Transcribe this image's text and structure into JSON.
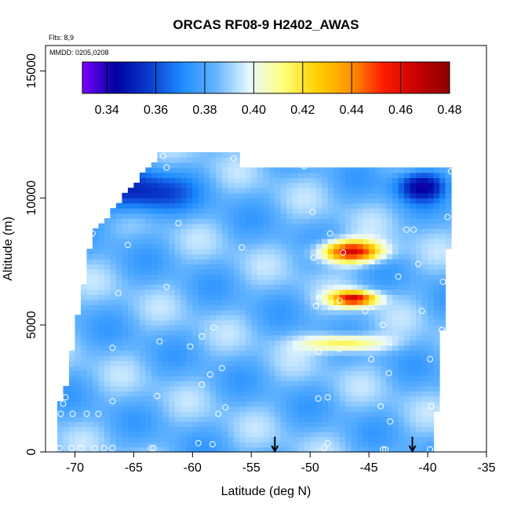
{
  "chart_data": {
    "type": "heatmap",
    "title": "ORCAS RF08-9 H2402_AWAS",
    "xlabel": "Latitude (deg N)",
    "ylabel": "Altitude (m)",
    "xlim": [
      -72.5,
      -35
    ],
    "ylim": [
      0,
      16000
    ],
    "x_ticks": [
      -70,
      -65,
      -60,
      -55,
      -50,
      -45,
      -40,
      -35
    ],
    "x_tick_labels": [
      "-70",
      "-65",
      "-60",
      "-55",
      "-50",
      "-45",
      "-40",
      "-35"
    ],
    "y_ticks": [
      0,
      5000,
      10000,
      15000
    ],
    "y_tick_labels": [
      "0",
      "5000",
      "10000",
      "15000"
    ],
    "flights_note": "Flts: 8,9",
    "date_note": "MMDD: 0205,0208",
    "colorbar": {
      "min": 0.33,
      "max": 0.48,
      "ticks": [
        0.34,
        0.36,
        0.38,
        0.4,
        0.42,
        0.44,
        0.46,
        0.48
      ],
      "tick_labels": [
        "0.34",
        "0.36",
        "0.38",
        "0.40",
        "0.42",
        "0.44",
        "0.46",
        "0.48"
      ],
      "colors": [
        "#7a00ff",
        "#0000a0",
        "#0a3ccd",
        "#1e8cff",
        "#64b4ff",
        "#e8f8ff",
        "#ffff80",
        "#ffd200",
        "#ff9600",
        "#ff1e00",
        "#c80000",
        "#8c0000"
      ]
    },
    "background_value": 0.385,
    "features": [
      {
        "lat_min": -49.5,
        "lat_max": -43.5,
        "alt_min": 7400,
        "alt_max": 8400,
        "peak": 0.465
      },
      {
        "lat_min": -48.5,
        "lat_max": -44.0,
        "alt_min": 5700,
        "alt_max": 6400,
        "peak": 0.46
      },
      {
        "lat_min": -51.0,
        "lat_max": -43.0,
        "alt_min": 3900,
        "alt_max": 4700,
        "peak": 0.425
      },
      {
        "lat_min": -70.0,
        "lat_max": -60.0,
        "alt_min": 9200,
        "alt_max": 11200,
        "peak": 0.35
      },
      {
        "lat_min": -43.0,
        "lat_max": -38.0,
        "alt_min": 9800,
        "alt_max": 11200,
        "peak": 0.345
      }
    ],
    "sample_points": [
      {
        "x": -62.5,
        "y": 11650
      },
      {
        "x": -56.5,
        "y": 11550
      },
      {
        "x": -62.2,
        "y": 11200
      },
      {
        "x": -50.5,
        "y": 11250
      },
      {
        "x": -38.0,
        "y": 11050
      },
      {
        "x": -67.8,
        "y": 10800
      },
      {
        "x": -68.2,
        "y": 9600
      },
      {
        "x": -49.8,
        "y": 9450
      },
      {
        "x": -61.2,
        "y": 9000
      },
      {
        "x": -38.3,
        "y": 9250
      },
      {
        "x": -48.3,
        "y": 8600
      },
      {
        "x": -41.8,
        "y": 8750
      },
      {
        "x": -41.2,
        "y": 8750
      },
      {
        "x": -68.5,
        "y": 8600
      },
      {
        "x": -65.5,
        "y": 8150
      },
      {
        "x": -55.8,
        "y": 8050
      },
      {
        "x": -47.2,
        "y": 7850
      },
      {
        "x": -49.7,
        "y": 7650
      },
      {
        "x": -45.8,
        "y": 7450
      },
      {
        "x": -40.8,
        "y": 7400
      },
      {
        "x": -70.0,
        "y": 7100
      },
      {
        "x": -42.5,
        "y": 6900
      },
      {
        "x": -38.7,
        "y": 6700
      },
      {
        "x": -62.2,
        "y": 6500
      },
      {
        "x": -66.3,
        "y": 6250
      },
      {
        "x": -47.5,
        "y": 5950
      },
      {
        "x": -49.5,
        "y": 5750
      },
      {
        "x": -45.3,
        "y": 5550
      },
      {
        "x": -40.5,
        "y": 5550
      },
      {
        "x": -43.8,
        "y": 5000
      },
      {
        "x": -58.2,
        "y": 4900
      },
      {
        "x": -38.8,
        "y": 4800
      },
      {
        "x": -59.2,
        "y": 4550
      },
      {
        "x": -62.8,
        "y": 4350
      },
      {
        "x": -60.2,
        "y": 4150
      },
      {
        "x": -66.8,
        "y": 4100
      },
      {
        "x": -70.5,
        "y": 4100
      },
      {
        "x": -47.5,
        "y": 4050
      },
      {
        "x": -49.3,
        "y": 3950
      },
      {
        "x": -44.8,
        "y": 3650
      },
      {
        "x": -39.8,
        "y": 3650
      },
      {
        "x": -57.5,
        "y": 3300
      },
      {
        "x": -58.5,
        "y": 3050
      },
      {
        "x": -43.3,
        "y": 3100
      },
      {
        "x": -59.2,
        "y": 2650
      },
      {
        "x": -63.0,
        "y": 2200
      },
      {
        "x": -70.8,
        "y": 2150
      },
      {
        "x": -48.5,
        "y": 2150
      },
      {
        "x": -49.3,
        "y": 2100
      },
      {
        "x": -66.8,
        "y": 2000
      },
      {
        "x": -71.0,
        "y": 1900
      },
      {
        "x": -44.0,
        "y": 1800
      },
      {
        "x": -39.7,
        "y": 1800
      },
      {
        "x": -57.2,
        "y": 1750
      },
      {
        "x": -57.8,
        "y": 1500
      },
      {
        "x": -70.2,
        "y": 1500
      },
      {
        "x": -69.0,
        "y": 1500
      },
      {
        "x": -68.0,
        "y": 1500
      },
      {
        "x": -71.2,
        "y": 1500
      },
      {
        "x": -43.2,
        "y": 1200
      },
      {
        "x": -59.5,
        "y": 350
      },
      {
        "x": -58.3,
        "y": 300
      },
      {
        "x": -48.5,
        "y": 350
      },
      {
        "x": -48.8,
        "y": 150
      },
      {
        "x": -71.3,
        "y": 150
      },
      {
        "x": -70.3,
        "y": 150
      },
      {
        "x": -69.5,
        "y": 150
      },
      {
        "x": -68.3,
        "y": 150
      },
      {
        "x": -67.5,
        "y": 150
      },
      {
        "x": -66.8,
        "y": 150
      },
      {
        "x": -63.3,
        "y": 150
      },
      {
        "x": -63.5,
        "y": 150
      },
      {
        "x": -43.8,
        "y": 100
      },
      {
        "x": -43.6,
        "y": 100
      },
      {
        "x": -39.8,
        "y": 100
      }
    ],
    "arrows": [
      {
        "x": -53.0,
        "y_top": 600,
        "y_bottom": 0
      },
      {
        "x": -41.3,
        "y_top": 600,
        "y_bottom": 0
      }
    ]
  }
}
